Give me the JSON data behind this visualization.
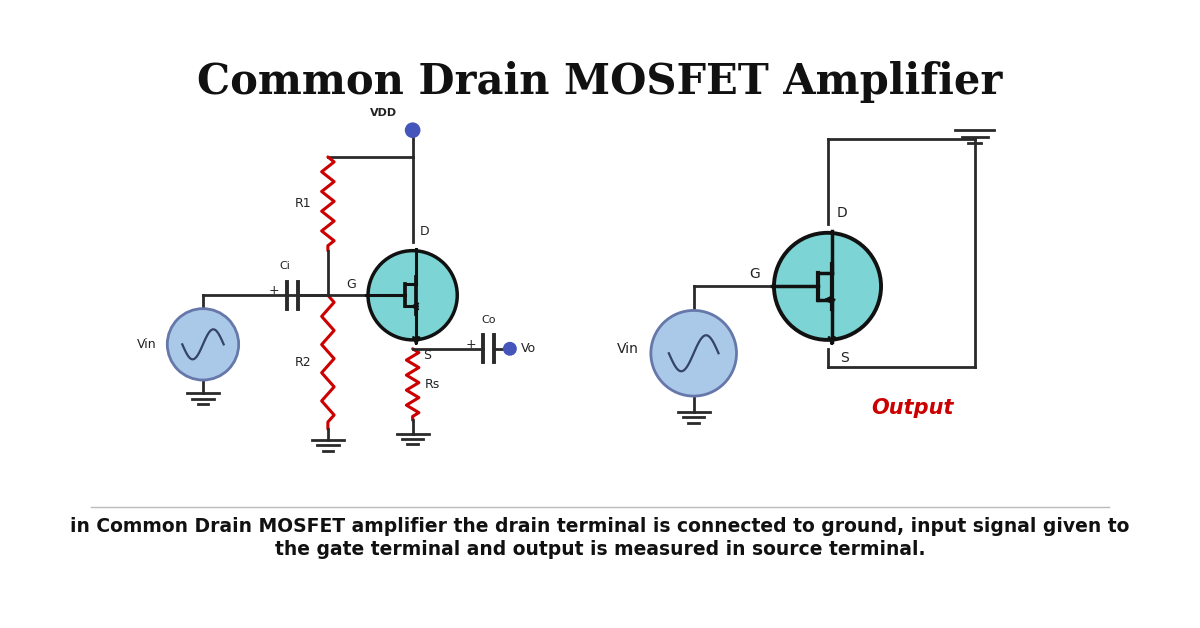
{
  "title": "Common Drain MOSFET Amplifier",
  "subtitle_line1": "in Common Drain MOSFET amplifier the drain terminal is connected to ground, input signal given to",
  "subtitle_line2": "the gate terminal and output is measured in source terminal.",
  "title_fontsize": 30,
  "subtitle_fontsize": 13.5,
  "bg_color": "#ffffff",
  "resistor_color": "#cc0000",
  "wire_color": "#2a2a2a",
  "mosfet_fill": "#7dd4d4",
  "mosfet_border": "#111111",
  "source_fill": "#aac8e8",
  "source_border": "#6677aa",
  "dot_color": "#4455bb",
  "output_text_color": "#cc0000",
  "label_color": "#222222",
  "ground_color": "#2a2a2a"
}
